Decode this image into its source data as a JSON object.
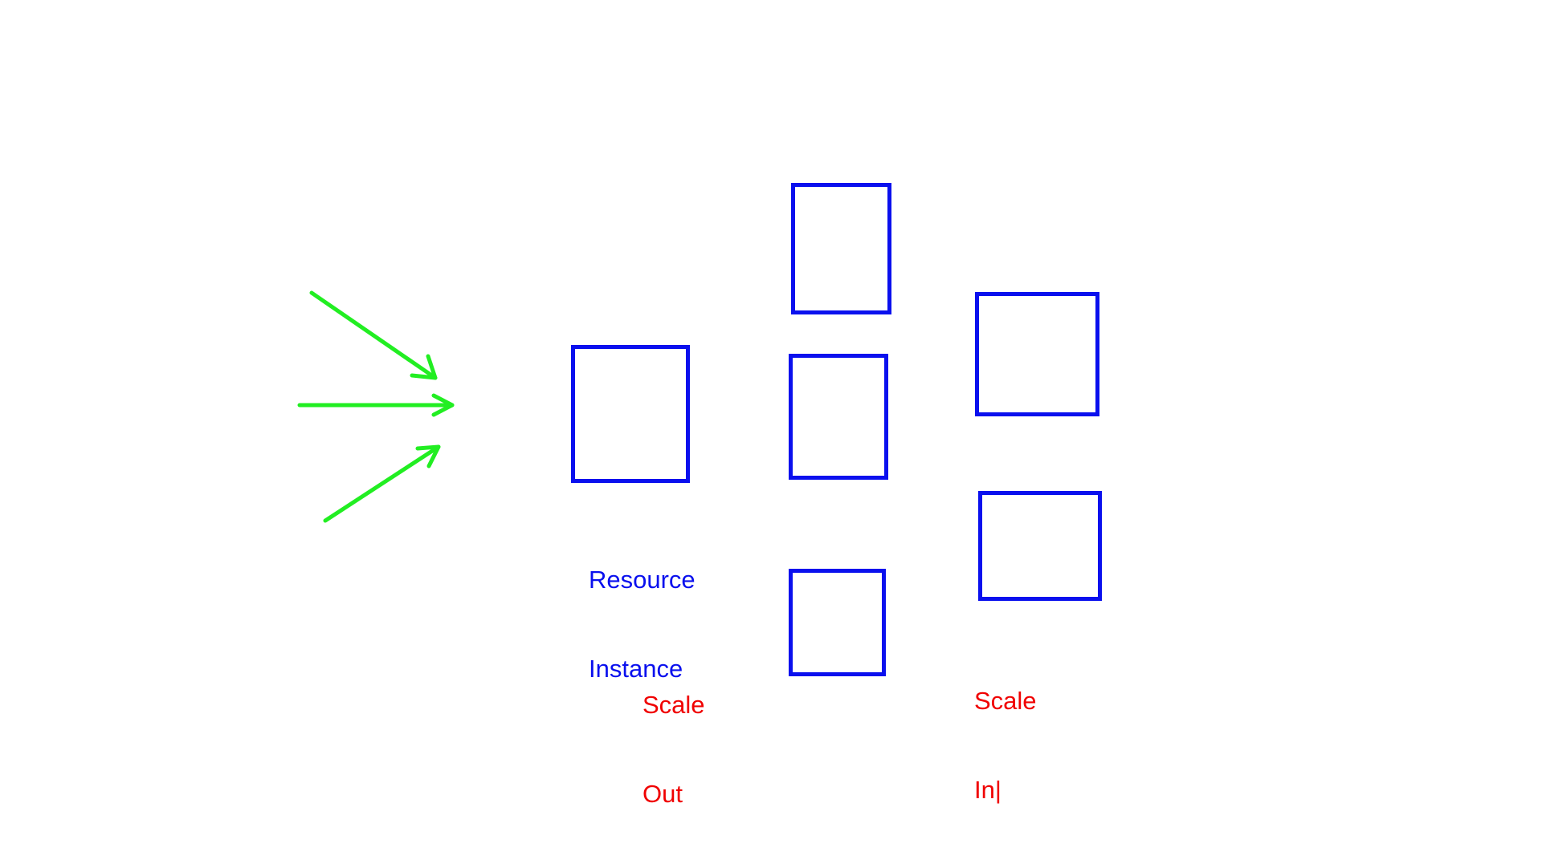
{
  "diagram": {
    "colors": {
      "arrow": "#22ee22",
      "box": "#0a10ee",
      "label_blue": "#0a10ee",
      "label_red": "#f00000"
    },
    "arrows": [
      "arrow",
      "arrow",
      "arrow"
    ],
    "labels": {
      "resource_line1": "Resource",
      "resource_line2": "Instance",
      "scale_out_line1": "Scale",
      "scale_out_line2": "Out",
      "scale_in_line1": "Scale",
      "scale_in_line2": "In|"
    }
  }
}
